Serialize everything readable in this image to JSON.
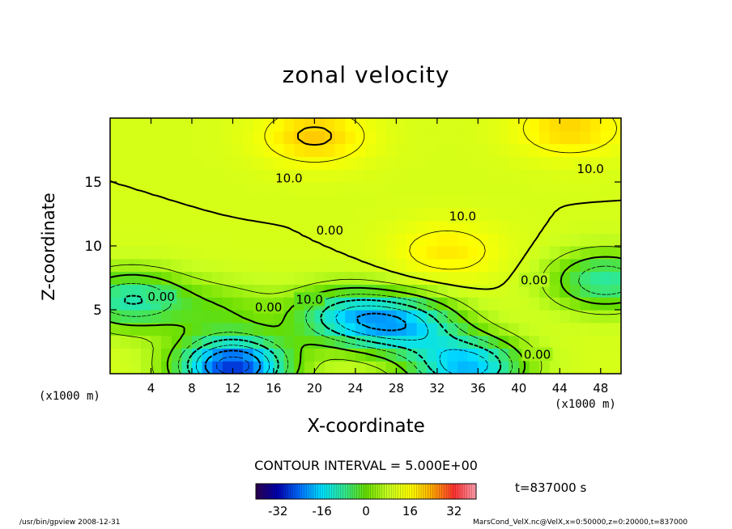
{
  "chart_data": {
    "type": "heatmap",
    "title": "zonal velocity",
    "xlabel": "X-coordinate",
    "ylabel": "Z-coordinate",
    "x_unit_left": "(x1000 m)",
    "x_unit_right": "(x1000 m)",
    "xlim": [
      0,
      50
    ],
    "ylim": [
      0,
      20
    ],
    "x_ticks": [
      "4",
      "8",
      "12",
      "16",
      "20",
      "24",
      "28",
      "32",
      "36",
      "40",
      "44",
      "48"
    ],
    "y_ticks": [
      "5",
      "10",
      "15"
    ],
    "contour_interval_text": "CONTOUR INTERVAL = 5.000E+00",
    "contour_labels": [
      {
        "text": "10.0",
        "x": 17.5,
        "z": 15.3
      },
      {
        "text": "10.0",
        "x": 47.0,
        "z": 16.0
      },
      {
        "text": "10.0",
        "x": 34.5,
        "z": 12.3
      },
      {
        "text": "0.00",
        "x": 21.5,
        "z": 11.2
      },
      {
        "text": "0.00",
        "x": 5.0,
        "z": 6.0
      },
      {
        "text": "0.00",
        "x": 15.5,
        "z": 5.2
      },
      {
        "text": "10.0",
        "x": 19.5,
        "z": 5.8
      },
      {
        "text": "0.00",
        "x": 41.5,
        "z": 7.3
      },
      {
        "text": "0.00",
        "x": 41.8,
        "z": 1.5
      }
    ],
    "colorbar": {
      "min": -40,
      "max": 40,
      "ticks": [
        "-32",
        "-16",
        "0",
        "16",
        "32"
      ],
      "colors": [
        "#2b0050",
        "#0000b0",
        "#0070ff",
        "#00e0ff",
        "#30e890",
        "#66dd00",
        "#c8ff20",
        "#ffff00",
        "#ffaa00",
        "#ff3030",
        "#ff9fb0"
      ]
    },
    "field_features": [
      {
        "x": 20,
        "z": 18.6,
        "u": 21
      },
      {
        "x": 45,
        "z": 19.2,
        "u": 20
      },
      {
        "x": 33,
        "z": 9.6,
        "u": 18
      },
      {
        "x": 2,
        "z": 5.8,
        "u": -10
      },
      {
        "x": 48.5,
        "z": 7.3,
        "u": -9
      },
      {
        "x": 12,
        "z": 0.6,
        "u": -28
      },
      {
        "x": 35,
        "z": 0.6,
        "u": -18
      },
      {
        "x": 23,
        "z": 4.5,
        "u": -11
      },
      {
        "x": 29,
        "z": 3.8,
        "u": -13
      },
      {
        "x": 11,
        "z": 5.0,
        "u": 2
      }
    ],
    "grid": false
  },
  "annotations": {
    "time": "t=837000 s",
    "footer_left": "/usr/bin/gpview   2008-12-31",
    "footer_right": "MarsCond_VelX.nc@VelX,x=0:50000,z=0:20000,t=837000"
  }
}
